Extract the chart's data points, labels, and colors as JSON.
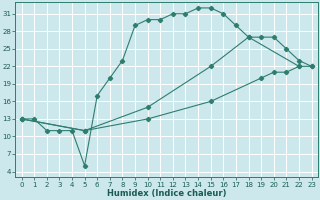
{
  "xlabel": "Humidex (Indice chaleur)",
  "bg_color": "#cce8ec",
  "line_color": "#2e7d6e",
  "grid_color": "#ffffff",
  "xlim": [
    -0.5,
    23.5
  ],
  "ylim": [
    3,
    33
  ],
  "xticks": [
    0,
    1,
    2,
    3,
    4,
    5,
    6,
    7,
    8,
    9,
    10,
    11,
    12,
    13,
    14,
    15,
    16,
    17,
    18,
    19,
    20,
    21,
    22,
    23
  ],
  "yticks": [
    4,
    7,
    10,
    13,
    16,
    19,
    22,
    25,
    28,
    31
  ],
  "line1_x": [
    0,
    1,
    2,
    3,
    4,
    5,
    6,
    7,
    8,
    9,
    10,
    11,
    12,
    13,
    14,
    15,
    16,
    17,
    18,
    22
  ],
  "line1_y": [
    13,
    13,
    11,
    11,
    11,
    5,
    17,
    20,
    23,
    29,
    30,
    30,
    31,
    31,
    32,
    32,
    31,
    29,
    27,
    22
  ],
  "line2_x": [
    0,
    5,
    10,
    15,
    18,
    19,
    20,
    21,
    22,
    23
  ],
  "line2_y": [
    13,
    11,
    15,
    22,
    27,
    27,
    27,
    25,
    23,
    22
  ],
  "line3_x": [
    0,
    5,
    10,
    15,
    19,
    20,
    21,
    22,
    23
  ],
  "line3_y": [
    13,
    11,
    13,
    16,
    20,
    21,
    21,
    22,
    22
  ]
}
